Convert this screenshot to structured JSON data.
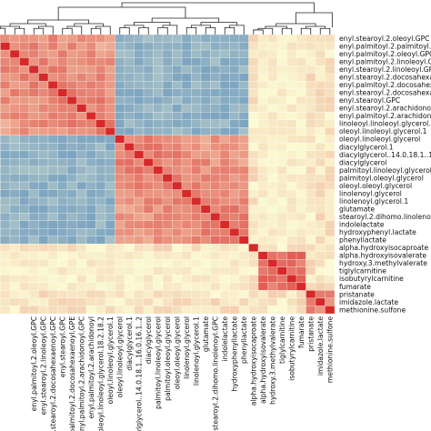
{
  "chart_data": {
    "type": "heatmap",
    "title": "",
    "xlabel": "",
    "ylabel": "",
    "color_scale": {
      "low": "#3b78b7",
      "mid": "#fbfad2",
      "high": "#d7292a"
    },
    "clusters": [
      {
        "start": 0,
        "end": 12,
        "level": 0.6
      },
      {
        "start": 13,
        "end": 26,
        "level": 0.6
      },
      {
        "start": 28,
        "end": 32,
        "level": 0.7
      },
      {
        "start": 33,
        "end": 35,
        "level": 0.55
      }
    ],
    "row_labels": [
      "enyl.stearoyl.2.oleoyl.GPC",
      "enyl.palmitoyl.2.palmitoyl.GPC",
      "enyl.palmitoyl.2.oleoyl.GPC",
      "enyl.palmitoyl.2.linoleoyl.GPC",
      "enyl.stearoyl.2.linoleoyl.GPC",
      "enyl.stearoyl.2.docosahexaeno",
      "enyl.palmitoyl.2.docosahexaeno",
      "enyl.stearoyl.2.docosahexaenoyl",
      "enyl.stearoyl.GPC",
      "enyl.stearoyl.2.arachidonoyl.GPC",
      "enyl.palmitoyl.2.arachidonoyl",
      "linoleoyl.linoleoyl.glycerol.18",
      "oleoyl.linoleoyl.glycerol.1",
      "oleoyl.linoleoyl.glycerol",
      "diacylglycerol.1",
      "diacylglycerol..14.0.18.1..16.",
      "diacylglycerol",
      "palmitoyl.linoleoyl.glycerol",
      "palmitoyl.oleoyl.glycerol",
      "oleoyl.oleoyl.glycerol",
      "linolenoyl.glycerol",
      "linolenoyl.glycerol.1",
      "glutamate",
      "stearoyl.2.dihomo.linolenoyl.GPC",
      "indolelactate",
      "hydroxyphenyl.lactate",
      "phenyllactate",
      "alpha.hydroxyisocaproate",
      "alpha.hydroxyisovalerate",
      "hydroxy.3.methylvalerate",
      "tiglylcarnitine",
      "isobutyrylcarnitine",
      "fumarate",
      "pristanate",
      "imidazole.lactate",
      "methionine.sulfone"
    ],
    "col_labels": [
      "",
      "",
      "",
      "",
      "enyl.palmitoyl.2.oleoyl.GPC",
      "enyl.stearoyl.2.linoleoyl.GPC",
      "enyl.stearoyl.2.docosahexaenoyl.GPC",
      "enyl.stearoyl.GPC",
      "enyl.palmitoyl.2.docosahexaenoyl.GPE",
      "enyl.palmitoyl.2.arachidonoyl.GPC",
      "enyl.palmitoyl.2.arachidonoyl",
      "linoleoyl.linoleoyl.glycerol.18.2.18.2",
      "oleoyl.linoleoyl.glycerol.1",
      "oleoyl.linoleoyl.glycerol",
      "diacylglycerol.1",
      "diacylglycerol..14.0.18.1..16.0.16.1..2",
      "diacylglycerol",
      "palmitoyl.linoleoyl.glycerol",
      "palmitoyl.oleoyl.glycerol",
      "oleoyl.oleoyl.glycerol",
      "linolenoyl.glycerol",
      "linolenoyl.glycerol.1",
      "glutamate",
      "stearoyl.2.dihomo.linolenoyl.GPC",
      "indolelactate",
      "hydroxyphenyllactate",
      "phenyllactate",
      "alpha.hydroxyisocaproate",
      "alpha.hydroxyisovalerate",
      "hydroxy.3.methylvalerate",
      "tiglylcarnitine",
      "isobutyrylcarnitine",
      "fumarate",
      "pristanate",
      "imidazole.lactate",
      "methionine.sulfone"
    ]
  }
}
